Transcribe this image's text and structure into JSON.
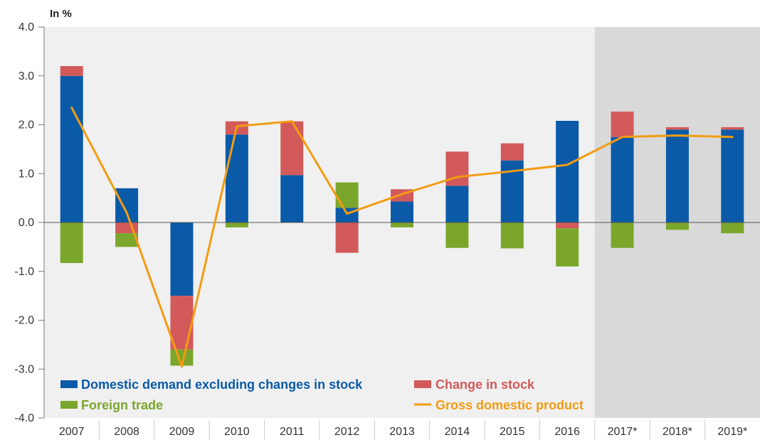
{
  "chart_data": {
    "type": "bar",
    "stacked": true,
    "unit_label": "In %",
    "title": "",
    "xlabel": "",
    "ylabel": "",
    "ylim": [
      -4.0,
      4.0
    ],
    "yticks": [
      4.0,
      3.0,
      2.0,
      1.0,
      0.0,
      -1.0,
      -2.0,
      -3.0,
      -4.0
    ],
    "ytick_labels": [
      "4.0",
      "3.0",
      "2.0",
      "1.0",
      "0.0",
      "-1.0",
      "-2.0",
      "-3.0",
      "-4.0"
    ],
    "categories": [
      "2007",
      "2008",
      "2009",
      "2010",
      "2011",
      "2012",
      "2013",
      "2014",
      "2015",
      "2016",
      "2017*",
      "2018*",
      "2019*"
    ],
    "forecast_categories": [
      "2017*",
      "2018*",
      "2019*"
    ],
    "series": [
      {
        "name": "Domestic demand excluding changes in stock",
        "kind": "bar",
        "color": "#0a5aa8",
        "values": [
          3.0,
          0.7,
          -1.5,
          1.8,
          0.97,
          0.3,
          0.43,
          0.75,
          1.27,
          2.08,
          1.75,
          1.9,
          1.9
        ]
      },
      {
        "name": "Change in stock",
        "kind": "bar",
        "color": "#d25a5a",
        "values": [
          0.2,
          -0.22,
          -1.1,
          0.27,
          1.1,
          -0.62,
          0.25,
          0.7,
          0.35,
          -0.12,
          0.52,
          0.05,
          0.05
        ]
      },
      {
        "name": "Foreign trade",
        "kind": "bar",
        "color": "#7ba62c",
        "values": [
          -0.83,
          -0.28,
          -0.33,
          -0.1,
          0.0,
          0.52,
          -0.1,
          -0.52,
          -0.53,
          -0.78,
          -0.52,
          -0.15,
          -0.22
        ]
      },
      {
        "name": "Gross domestic product",
        "kind": "line",
        "color": "#f39c12",
        "values": [
          2.35,
          0.2,
          -2.95,
          1.97,
          2.07,
          0.18,
          0.58,
          0.93,
          1.05,
          1.18,
          1.75,
          1.78,
          1.75
        ]
      }
    ],
    "grid": false,
    "legend": "bottom-inside",
    "background_color": "#f0f0f0",
    "forecast_background_color": "#d9d9d9"
  }
}
